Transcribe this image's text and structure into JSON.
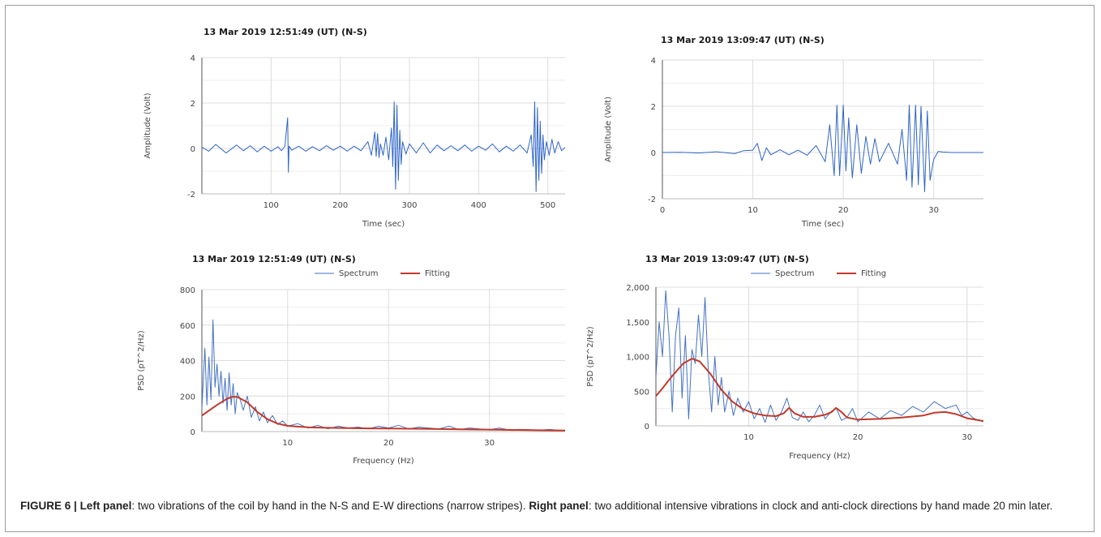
{
  "caption": {
    "fig_label": "FIGURE 6 |",
    "left_label": "Left panel",
    "left_text": ": two vibrations of the coil by hand in the N-S and E-W directions (narrow stripes).",
    "right_label": "Right panel",
    "right_text": ": two additional intensive vibrations in clock and anti-clock directions by hand made 20 min later."
  },
  "colors": {
    "spectrum": "#4472c4",
    "fitting": "#c0392b",
    "signal": "#2f65c8",
    "grid": "#dcdcdc"
  },
  "chart_data": [
    {
      "id": "tl",
      "type": "line",
      "title": "13 Mar 2019  12:51:49 (UT) (N-S)",
      "xlabel": "Time (sec)",
      "ylabel": "Amplitude (Volt)",
      "xlim": [
        0,
        525
      ],
      "ylim": [
        -2,
        4
      ],
      "xticks": [
        100,
        200,
        300,
        400,
        500
      ],
      "yticks": [
        -2,
        0,
        2,
        4
      ],
      "grid": true,
      "legend": null,
      "series": [
        {
          "style": "signal",
          "x": [
            0,
            10,
            20,
            35,
            50,
            60,
            70,
            80,
            90,
            100,
            110,
            115,
            120,
            124,
            125,
            126,
            130,
            140,
            150,
            160,
            170,
            180,
            190,
            200,
            210,
            220,
            230,
            240,
            245,
            250,
            252,
            254,
            256,
            258,
            262,
            266,
            270,
            274,
            276,
            278,
            280,
            282,
            284,
            286,
            288,
            290,
            295,
            300,
            310,
            320,
            330,
            340,
            350,
            360,
            370,
            380,
            390,
            400,
            410,
            420,
            430,
            440,
            450,
            460,
            470,
            476,
            479,
            481,
            483,
            485,
            487,
            489,
            491,
            493,
            495,
            498,
            502,
            506,
            510,
            515,
            520,
            525
          ],
          "y": [
            0.05,
            -0.12,
            0.18,
            -0.2,
            0.15,
            -0.1,
            0.12,
            -0.15,
            0.1,
            -0.12,
            0.08,
            -0.1,
            0.1,
            1.35,
            -1.05,
            0.1,
            -0.08,
            0.1,
            -0.12,
            0.08,
            -0.1,
            0.12,
            -0.08,
            0.1,
            -0.12,
            0.1,
            -0.1,
            0.3,
            -0.3,
            0.72,
            -0.35,
            0.65,
            -0.4,
            0.2,
            -0.3,
            0.5,
            -0.5,
            0.9,
            -0.8,
            2.05,
            -1.8,
            1.9,
            -1.4,
            0.8,
            -0.7,
            0.3,
            -0.25,
            0.2,
            -0.2,
            0.25,
            -0.2,
            0.15,
            -0.1,
            0.12,
            -0.1,
            0.15,
            -0.12,
            0.1,
            -0.08,
            0.2,
            -0.15,
            0.1,
            -0.12,
            0.15,
            -0.2,
            0.6,
            -0.8,
            2.05,
            -1.9,
            1.8,
            -1.4,
            1.2,
            -1.1,
            0.6,
            -0.5,
            0.3,
            -0.3,
            0.4,
            -0.2,
            0.3,
            -0.1,
            0.05
          ]
        }
      ]
    },
    {
      "id": "tr",
      "type": "line",
      "title": "13 Mar 2019  13:09:47 (UT) (N-S)",
      "xlabel": "Time (sec)",
      "ylabel": "Amplitude (Volt)",
      "xlim": [
        0,
        35.5
      ],
      "ylim": [
        -2,
        4
      ],
      "xticks": [
        0,
        10,
        20,
        30
      ],
      "yticks": [
        -2,
        0,
        2,
        4
      ],
      "grid": true,
      "legend": null,
      "series": [
        {
          "style": "signal",
          "x": [
            0,
            2,
            4,
            6,
            8,
            9,
            10,
            10.5,
            11,
            11.5,
            12,
            13,
            14,
            15,
            16,
            17,
            18,
            18.5,
            19,
            19.3,
            19.6,
            20,
            20.3,
            20.6,
            21,
            21.5,
            22,
            22.5,
            23,
            23.5,
            24,
            25,
            26,
            26.5,
            27,
            27.3,
            27.6,
            28,
            28.3,
            28.6,
            29,
            29.3,
            29.6,
            30,
            30.5,
            31,
            32,
            33,
            34,
            35.5
          ],
          "y": [
            0,
            0.01,
            -0.02,
            0.03,
            -0.05,
            0.08,
            0.1,
            0.4,
            -0.35,
            0.2,
            -0.1,
            0.12,
            -0.1,
            0.1,
            -0.12,
            0.3,
            -0.4,
            1.2,
            -1.0,
            2.05,
            -1.0,
            2.05,
            -0.8,
            1.5,
            -1.1,
            1.2,
            -0.9,
            0.7,
            -0.5,
            0.6,
            -0.4,
            0.4,
            -0.5,
            1.0,
            -1.2,
            2.05,
            -1.5,
            2.05,
            -1.4,
            2.0,
            -1.7,
            1.8,
            -1.2,
            -0.3,
            0.05,
            0.02,
            0,
            0,
            0,
            0
          ]
        }
      ]
    },
    {
      "id": "bl",
      "type": "line",
      "title": "13 Mar 2019  12:51:49 (UT) (N-S)",
      "xlabel": "Frequency (Hz)",
      "ylabel": "PSD (pT^2/Hz)",
      "xlim": [
        1.5,
        37.5
      ],
      "ylim": [
        0,
        800
      ],
      "xticks": [
        10,
        20,
        30
      ],
      "yticks": [
        0,
        200,
        400,
        600,
        800
      ],
      "ytick_labels": [
        "0",
        "200",
        "400",
        "600",
        "800"
      ],
      "grid": true,
      "legend": "top-center",
      "series": [
        {
          "name": "Spectrum",
          "style": "spectrum",
          "x": [
            1.5,
            1.8,
            2.0,
            2.2,
            2.4,
            2.6,
            2.8,
            3.0,
            3.2,
            3.4,
            3.6,
            3.8,
            4.0,
            4.2,
            4.4,
            4.6,
            4.8,
            5.0,
            5.3,
            5.6,
            6.0,
            6.4,
            6.8,
            7.2,
            7.6,
            8.0,
            8.5,
            9.0,
            9.5,
            10,
            11,
            12,
            13,
            14,
            15,
            16,
            17,
            18,
            19,
            20,
            21,
            22,
            23,
            24,
            25,
            26,
            27,
            28,
            29,
            30,
            31,
            32,
            33,
            34,
            35,
            36,
            37,
            37.5
          ],
          "y": [
            130,
            470,
            150,
            420,
            180,
            630,
            250,
            380,
            200,
            340,
            160,
            300,
            120,
            330,
            150,
            270,
            100,
            220,
            180,
            120,
            200,
            80,
            140,
            60,
            110,
            50,
            90,
            40,
            60,
            30,
            45,
            20,
            35,
            15,
            30,
            20,
            25,
            15,
            30,
            20,
            35,
            15,
            25,
            20,
            15,
            30,
            10,
            20,
            15,
            10,
            20,
            8,
            12,
            10,
            8,
            12,
            6,
            8
          ]
        },
        {
          "name": "Fitting",
          "style": "fitting",
          "x": [
            1.5,
            2,
            3,
            4,
            4.5,
            5,
            6,
            7,
            8,
            9,
            10,
            12,
            14,
            16,
            18,
            20,
            22,
            25,
            28,
            31,
            34,
            37.5
          ],
          "y": [
            90,
            110,
            150,
            185,
            195,
            195,
            165,
            110,
            70,
            45,
            32,
            24,
            21,
            19,
            18,
            17,
            16,
            14,
            12,
            10,
            8,
            6
          ]
        }
      ]
    },
    {
      "id": "br",
      "type": "line",
      "title": "13 Mar 2019  13:09:47 (UT) (N-S)",
      "xlabel": "Frequency (Hz)",
      "ylabel": "PSD (pT^2/Hz)",
      "xlim": [
        1.5,
        31.5
      ],
      "ylim": [
        0,
        2000
      ],
      "xticks": [
        10,
        20,
        30
      ],
      "yticks": [
        0,
        500,
        1000,
        1500,
        2000
      ],
      "ytick_labels": [
        "0",
        "500",
        "1,000",
        "1,500",
        "2,000"
      ],
      "grid": true,
      "legend": "top-center",
      "series": [
        {
          "name": "Spectrum",
          "style": "spectrum",
          "x": [
            1.5,
            1.8,
            2.1,
            2.4,
            2.7,
            3.0,
            3.3,
            3.6,
            3.9,
            4.2,
            4.5,
            4.8,
            5.1,
            5.4,
            5.7,
            6.0,
            6.3,
            6.6,
            6.9,
            7.2,
            7.5,
            7.8,
            8.2,
            8.6,
            9.0,
            9.5,
            10,
            10.5,
            11,
            11.5,
            12,
            12.5,
            13,
            13.5,
            14,
            14.5,
            15,
            15.5,
            16,
            16.5,
            17,
            17.5,
            18,
            18.5,
            19,
            19.5,
            20,
            21,
            22,
            23,
            24,
            25,
            26,
            27,
            28,
            29,
            29.5,
            30,
            30.5,
            31,
            31.5
          ],
          "y": [
            700,
            1500,
            1000,
            1950,
            1300,
            200,
            1300,
            1700,
            400,
            1300,
            100,
            1100,
            900,
            1600,
            1000,
            1850,
            800,
            200,
            1000,
            300,
            700,
            200,
            500,
            150,
            400,
            200,
            350,
            100,
            250,
            50,
            300,
            80,
            200,
            400,
            120,
            80,
            200,
            60,
            150,
            300,
            100,
            200,
            260,
            80,
            120,
            250,
            60,
            200,
            100,
            220,
            150,
            280,
            200,
            350,
            250,
            300,
            150,
            200,
            120,
            80,
            60
          ]
        },
        {
          "name": "Fitting",
          "style": "fitting",
          "x": [
            1.5,
            2,
            3,
            4,
            4.8,
            5.5,
            6.5,
            7.5,
            8.5,
            9.5,
            10.5,
            11.5,
            12.5,
            13.2,
            13.7,
            14.2,
            15,
            16,
            17,
            17.6,
            18,
            18.5,
            19,
            20,
            22,
            24,
            26,
            27,
            28,
            29,
            30,
            31.5
          ],
          "y": [
            430,
            520,
            720,
            900,
            970,
            930,
            750,
            520,
            350,
            240,
            180,
            150,
            140,
            180,
            260,
            180,
            130,
            130,
            160,
            200,
            260,
            200,
            120,
            90,
            100,
            120,
            150,
            190,
            200,
            170,
            110,
            70
          ]
        }
      ]
    }
  ]
}
